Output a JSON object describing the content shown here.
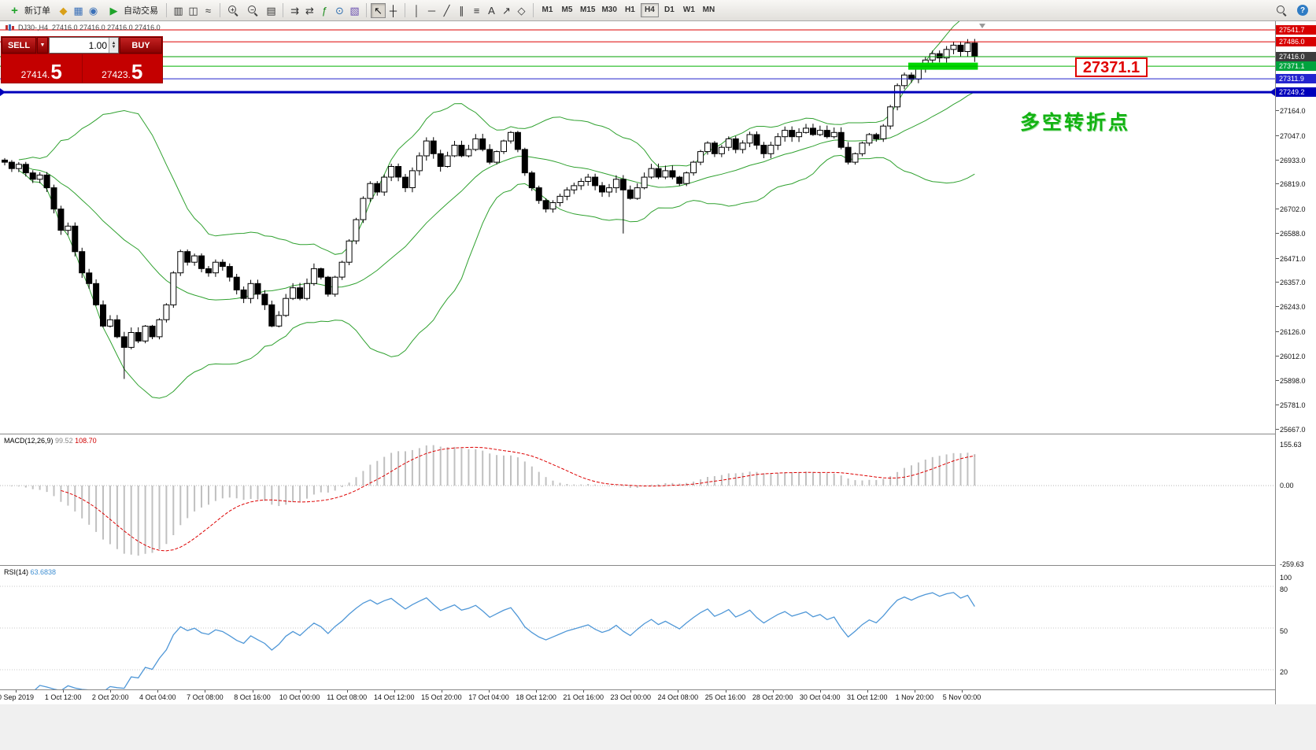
{
  "toolbar": {
    "new_order_label": "新订单",
    "autotrade_label": "自动交易",
    "icon_groups": {
      "g-views": [
        {
          "name": "market-watch-icon",
          "glyph": "◆",
          "color": "#d9a018"
        },
        {
          "name": "data-window-icon",
          "glyph": "▦",
          "color": "#3a70b8"
        },
        {
          "name": "navigator-icon",
          "glyph": "◉",
          "color": "#3a70b8"
        }
      ],
      "g-charttypes": [
        {
          "name": "bar-chart-icon",
          "glyph": "▥",
          "color": "#333333"
        },
        {
          "name": "candlestick-icon",
          "glyph": "◫",
          "color": "#333333"
        },
        {
          "name": "line-chart-icon",
          "glyph": "≈",
          "color": "#333333"
        }
      ],
      "g-win": [
        {
          "name": "tile-windows-icon",
          "glyph": "▤",
          "color": "#333333"
        }
      ],
      "g-tools": [
        {
          "name": "auto-scroll-icon",
          "glyph": "⇉",
          "color": "#333333"
        },
        {
          "name": "chart-shift-icon",
          "glyph": "⇄",
          "color": "#333333"
        },
        {
          "name": "indicators-icon",
          "glyph": "ƒ",
          "color": "#1c8c1c"
        },
        {
          "name": "periods-icon",
          "glyph": "⊙",
          "color": "#2f6fb0"
        },
        {
          "name": "templates-icon",
          "glyph": "▧",
          "color": "#6a4fb0"
        }
      ],
      "g-cross": [
        {
          "name": "cursor-icon",
          "glyph": "↖",
          "color": "#111111",
          "active": true
        },
        {
          "name": "crosshair-icon",
          "glyph": "┼",
          "color": "#111111"
        }
      ],
      "g-draw": [
        {
          "name": "vertical-line-icon",
          "glyph": "│",
          "color": "#333333"
        },
        {
          "name": "horizontal-line-icon",
          "glyph": "─",
          "color": "#333333"
        },
        {
          "name": "trendline-icon",
          "glyph": "╱",
          "color": "#333333"
        },
        {
          "name": "channel-icon",
          "glyph": "∥",
          "color": "#333333"
        },
        {
          "name": "fibonacci-icon",
          "glyph": "≡",
          "color": "#333333"
        },
        {
          "name": "text-icon",
          "glyph": "A",
          "color": "#333333"
        },
        {
          "name": "arrow-icon",
          "glyph": "↗",
          "color": "#333333"
        },
        {
          "name": "shapes-icon",
          "glyph": "◇",
          "color": "#333333"
        }
      ]
    },
    "timeframes": [
      "M1",
      "M5",
      "M15",
      "M30",
      "H1",
      "H4",
      "D1",
      "W1",
      "MN"
    ],
    "active_timeframe": "H4"
  },
  "chart_header": {
    "symbol_period": "DJ30-,H4",
    "ohlc": "27416.0 27416.0 27416.0 27416.0"
  },
  "trade_panel": {
    "sell_label": "SELL",
    "buy_label": "BUY",
    "volume": "1.00",
    "sell_price_main": "27414.",
    "sell_price_pip": "5",
    "buy_price_main": "27423.",
    "buy_price_pip": "5"
  },
  "annotations": {
    "callout_text": "27371.1",
    "callout_color": "#e00000",
    "note_text": "多空转折点",
    "note_color": "#12b212",
    "highlight_box": {
      "from_index": 129,
      "to_index": 138,
      "price": 27373,
      "color": "#00d800"
    }
  },
  "lines": [
    {
      "level": 27541.7,
      "color": "#dd0000",
      "width": 1
    },
    {
      "level": 27486.0,
      "color": "#dd0000",
      "width": 1
    },
    {
      "level": 27416.0,
      "color": "#00a000",
      "width": 1
    },
    {
      "level": 27371.1,
      "color": "#00b000",
      "width": 1
    },
    {
      "level": 27311.9,
      "color": "#2222cc",
      "width": 1
    },
    {
      "level": 27249.2,
      "color": "#0000bb",
      "width": 3,
      "edge_arrows": true
    }
  ],
  "price_scale": {
    "ticks": [
      "27164.0",
      "27047.0",
      "26933.0",
      "26819.0",
      "26702.0",
      "26588.0",
      "26471.0",
      "26357.0",
      "26243.0",
      "26126.0",
      "26012.0",
      "25898.0",
      "25781.0",
      "25667.0"
    ],
    "markers": [
      {
        "label": "27541.7",
        "level": 27541.7,
        "bg": "#d80000"
      },
      {
        "label": "27486.0",
        "level": 27486.0,
        "bg": "#d80000"
      },
      {
        "label": "27416.0",
        "level": 27416.0,
        "bg": "#3c3c3c"
      },
      {
        "label": "27371.1",
        "level": 27371.1,
        "bg": "#00a33e"
      },
      {
        "label": "27311.9",
        "level": 27311.9,
        "bg": "#2424cf"
      },
      {
        "label": "27249.2",
        "level": 27249.2,
        "bg": "#0000bb"
      }
    ],
    "macd_scale": [
      "155.63",
      "0.00",
      "-259.63"
    ],
    "rsi_scale": [
      "100",
      "80",
      "50",
      "20"
    ]
  },
  "macd": {
    "label": "MACD(12,26,9)",
    "value": "99.52",
    "signal_value": "108.70"
  },
  "rsi": {
    "label": "RSI(14)",
    "value": "63.6838"
  },
  "time_axis": {
    "labels": [
      "0 Sep 2019",
      "1 Oct 12:00",
      "2 Oct 20:00",
      "4 Oct 04:00",
      "7 Oct 08:00",
      "8 Oct 16:00",
      "10 Oct 00:00",
      "11 Oct 08:00",
      "14 Oct 12:00",
      "15 Oct 20:00",
      "17 Oct 04:00",
      "18 Oct 12:00",
      "21 Oct 16:00",
      "23 Oct 00:00",
      "24 Oct 08:00",
      "25 Oct 16:00",
      "28 Oct 20:00",
      "30 Oct 04:00",
      "31 Oct 12:00",
      "1 Nov 20:00",
      "5 Nov 00:00"
    ]
  },
  "chart_data": {
    "type": "candlestick",
    "symbol": "DJ30-",
    "timeframe": "H4",
    "first_open": 26930,
    "closes": [
      26920,
      26890,
      26910,
      26870,
      26840,
      26860,
      26800,
      26700,
      26600,
      26620,
      26500,
      26400,
      26350,
      26250,
      26150,
      26180,
      26100,
      26050,
      26120,
      26080,
      26150,
      26100,
      26180,
      26250,
      26400,
      26500,
      26450,
      26480,
      26420,
      26400,
      26450,
      26430,
      26380,
      26320,
      26280,
      26350,
      26300,
      26250,
      26150,
      26200,
      26280,
      26330,
      26280,
      26350,
      26420,
      26380,
      26300,
      26380,
      26450,
      26550,
      26650,
      26750,
      26820,
      26780,
      26850,
      26900,
      26850,
      26800,
      26880,
      26950,
      27020,
      26960,
      26900,
      26950,
      27000,
      26950,
      26980,
      27030,
      26980,
      26920,
      26970,
      27020,
      27060,
      26980,
      26870,
      26800,
      26740,
      26700,
      26730,
      26760,
      26790,
      26810,
      26830,
      26850,
      26810,
      26780,
      26800,
      26840,
      26790,
      26750,
      26800,
      26850,
      26890,
      26850,
      26880,
      26850,
      26820,
      26870,
      26920,
      26970,
      27010,
      26960,
      26990,
      27030,
      26980,
      27010,
      27050,
      27000,
      26960,
      27000,
      27040,
      27070,
      27040,
      27060,
      27080,
      27050,
      27070,
      27040,
      27060,
      26990,
      26920,
      26960,
      27010,
      27050,
      27030,
      27090,
      27180,
      27280,
      27330,
      27310,
      27360,
      27400,
      27430,
      27410,
      27450,
      27470,
      27440,
      27480,
      27416
    ],
    "extra_lower_wicks": {
      "17": 140,
      "88": 180
    },
    "indicators": {
      "bollinger": {
        "period": 20,
        "deviation": 2,
        "color": "#2fa12f"
      },
      "macd": {
        "fast": 12,
        "slow": 26,
        "signal": 9,
        "histogram_color": "#c0c0c0",
        "signal_color": "#dd0000",
        "scale": {
          "max": 155.63,
          "zero": 0.0,
          "min": -259.63
        }
      },
      "rsi": {
        "period": 14,
        "color": "#4f97d7",
        "levels": [
          80,
          50,
          20
        ]
      }
    },
    "price_axis": {
      "visible_max": 27560,
      "visible_min": 25630
    }
  }
}
